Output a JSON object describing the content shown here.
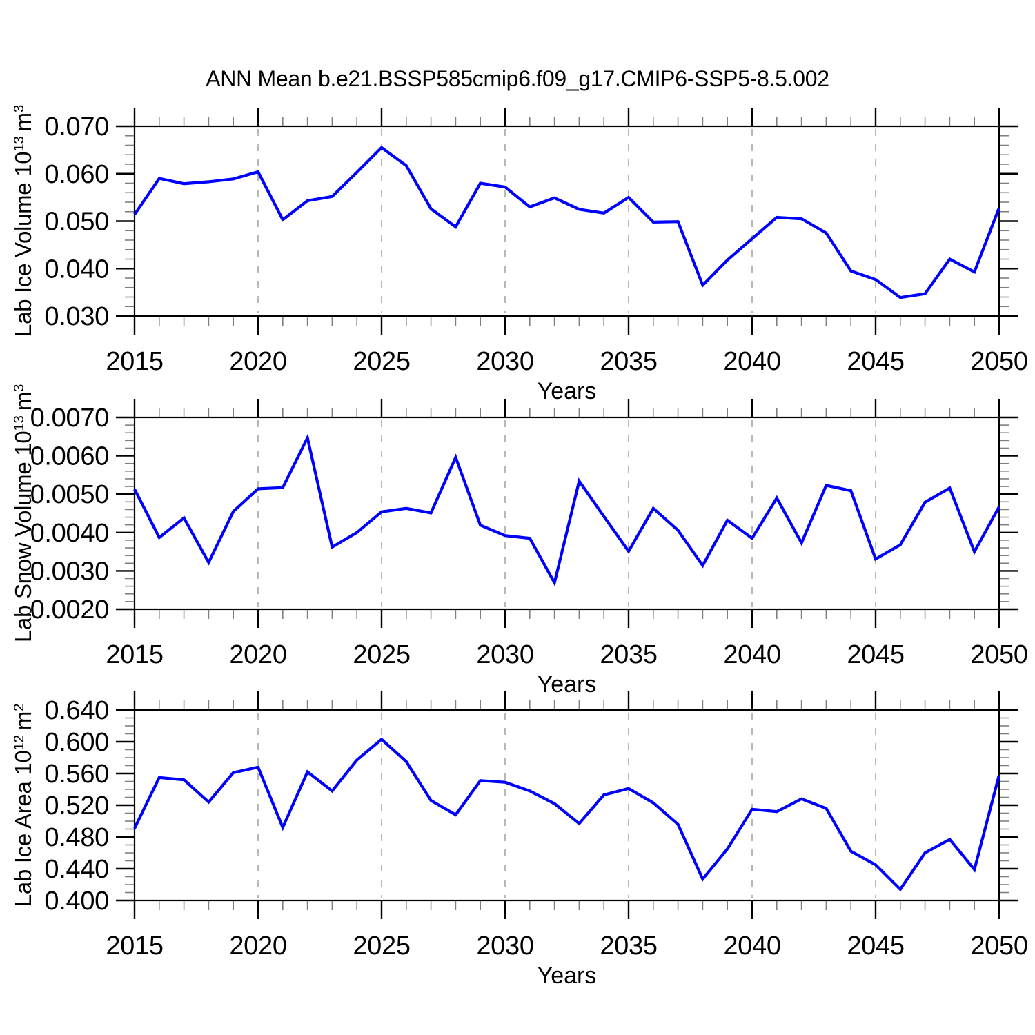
{
  "title": "ANN Mean b.e21.BSSP585cmip6.f09_g17.CMIP6-SSP5-8.5.002",
  "colors": {
    "line": "#0000ff",
    "grid": "#a6a6a6",
    "axis": "#000000",
    "minor_tick": "#808080"
  },
  "chart_data": [
    {
      "type": "line",
      "name": "lab-ice-volume",
      "ylabel": {
        "text": "Lab Ice Volume 10",
        "exp": "13",
        "unit": "m",
        "unit_exp": "3"
      },
      "xlabel": "Years",
      "xlim": [
        2015,
        2050
      ],
      "ylim": [
        0.03,
        0.07
      ],
      "ytick_labels": [
        "0.030",
        "0.040",
        "0.050",
        "0.060",
        "0.070"
      ],
      "ytick_values": [
        0.03,
        0.04,
        0.05,
        0.06,
        0.07
      ],
      "y_minor_step": 0.002,
      "xtick_values": [
        2015,
        2020,
        2025,
        2030,
        2035,
        2040,
        2045,
        2050
      ],
      "x_minor_step": 1,
      "grid_x": [
        2020,
        2025,
        2030,
        2035,
        2040,
        2045
      ],
      "x": [
        2015,
        2016,
        2017,
        2018,
        2019,
        2020,
        2021,
        2022,
        2023,
        2024,
        2025,
        2026,
        2027,
        2028,
        2029,
        2030,
        2031,
        2032,
        2033,
        2034,
        2035,
        2036,
        2037,
        2038,
        2039,
        2040,
        2041,
        2042,
        2043,
        2044,
        2045,
        2046,
        2047,
        2048,
        2049,
        2050
      ],
      "values": [
        0.0514,
        0.059,
        0.0579,
        0.0583,
        0.0589,
        0.0604,
        0.0503,
        0.0543,
        0.0552,
        0.0603,
        0.0655,
        0.0617,
        0.0526,
        0.0488,
        0.058,
        0.0572,
        0.053,
        0.0549,
        0.0525,
        0.0517,
        0.055,
        0.0498,
        0.0499,
        0.0365,
        0.0418,
        0.0463,
        0.0508,
        0.0505,
        0.0475,
        0.0395,
        0.0377,
        0.0339,
        0.0347,
        0.042,
        0.0393,
        0.0528
      ]
    },
    {
      "type": "line",
      "name": "lab-snow-volume",
      "ylabel": {
        "text": "Lab Snow Volume 10",
        "exp": "13",
        "unit": "m",
        "unit_exp": "3"
      },
      "xlabel": "Years",
      "xlim": [
        2015,
        2050
      ],
      "ylim": [
        0.002,
        0.007
      ],
      "ytick_labels": [
        "0.0020",
        "0.0030",
        "0.0040",
        "0.0050",
        "0.0060",
        "0.0070"
      ],
      "ytick_values": [
        0.002,
        0.003,
        0.004,
        0.005,
        0.006,
        0.007
      ],
      "y_minor_step": 0.0002,
      "xtick_values": [
        2015,
        2020,
        2025,
        2030,
        2035,
        2040,
        2045,
        2050
      ],
      "x_minor_step": 1,
      "grid_x": [
        2020,
        2025,
        2030,
        2035,
        2040,
        2045
      ],
      "x": [
        2015,
        2016,
        2017,
        2018,
        2019,
        2020,
        2021,
        2022,
        2023,
        2024,
        2025,
        2026,
        2027,
        2028,
        2029,
        2030,
        2031,
        2032,
        2033,
        2034,
        2035,
        2036,
        2037,
        2038,
        2039,
        2040,
        2041,
        2042,
        2043,
        2044,
        2045,
        2046,
        2047,
        2048,
        2049,
        2050
      ],
      "values": [
        0.00513,
        0.00387,
        0.00438,
        0.00322,
        0.00455,
        0.00514,
        0.00517,
        0.00647,
        0.00362,
        0.004,
        0.00454,
        0.00463,
        0.00451,
        0.00596,
        0.00419,
        0.00392,
        0.00385,
        0.00269,
        0.00534,
        0.00442,
        0.00351,
        0.00463,
        0.00406,
        0.00314,
        0.00432,
        0.00385,
        0.0049,
        0.00373,
        0.00523,
        0.00509,
        0.00331,
        0.00368,
        0.00479,
        0.00516,
        0.0035,
        0.00467
      ]
    },
    {
      "type": "line",
      "name": "lab-ice-area",
      "ylabel": {
        "text": "Lab Ice Area 10",
        "exp": "12",
        "unit": "m",
        "unit_exp": "2"
      },
      "xlabel": "Years",
      "xlim": [
        2015,
        2050
      ],
      "ylim": [
        0.4,
        0.64
      ],
      "ytick_labels": [
        "0.400",
        "0.440",
        "0.480",
        "0.520",
        "0.560",
        "0.600",
        "0.640"
      ],
      "ytick_values": [
        0.4,
        0.44,
        0.48,
        0.52,
        0.56,
        0.6,
        0.64
      ],
      "y_minor_step": 0.01,
      "xtick_values": [
        2015,
        2020,
        2025,
        2030,
        2035,
        2040,
        2045,
        2050
      ],
      "x_minor_step": 1,
      "grid_x": [
        2020,
        2025,
        2030,
        2035,
        2040,
        2045
      ],
      "x": [
        2015,
        2016,
        2017,
        2018,
        2019,
        2020,
        2021,
        2022,
        2023,
        2024,
        2025,
        2026,
        2027,
        2028,
        2029,
        2030,
        2031,
        2032,
        2033,
        2034,
        2035,
        2036,
        2037,
        2038,
        2039,
        2040,
        2041,
        2042,
        2043,
        2044,
        2045,
        2046,
        2047,
        2048,
        2049,
        2050
      ],
      "values": [
        0.491,
        0.555,
        0.552,
        0.524,
        0.561,
        0.568,
        0.492,
        0.562,
        0.538,
        0.577,
        0.603,
        0.575,
        0.526,
        0.508,
        0.551,
        0.549,
        0.538,
        0.522,
        0.497,
        0.533,
        0.541,
        0.523,
        0.496,
        0.427,
        0.465,
        0.515,
        0.512,
        0.528,
        0.516,
        0.462,
        0.445,
        0.414,
        0.46,
        0.477,
        0.439,
        0.558
      ]
    }
  ]
}
